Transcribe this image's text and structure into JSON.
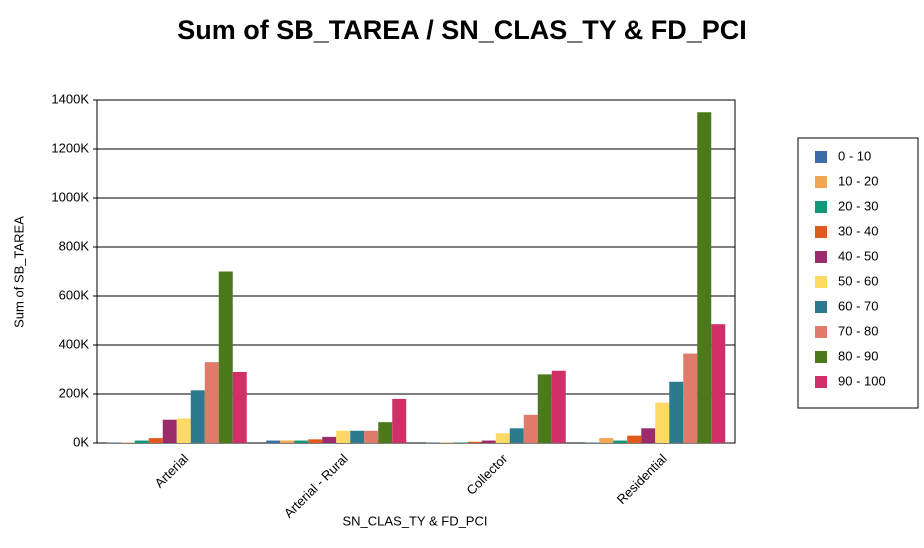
{
  "chart_data": {
    "type": "bar",
    "title": "Sum of SB_TAREA / SN_CLAS_TY & FD_PCI",
    "x_label": "SN_CLAS_TY & FD_PCI",
    "y_label": "Sum of SB_TAREA",
    "categories": [
      "Arterial",
      "Arterial - Rural",
      "Collector",
      "Residential"
    ],
    "series": [
      {
        "name": "0 - 10",
        "color": "#3b6ea8",
        "values": [
          2000,
          10000,
          2000,
          2000
        ]
      },
      {
        "name": "10 - 20",
        "color": "#f2a552",
        "values": [
          2000,
          10000,
          2000,
          20000
        ]
      },
      {
        "name": "20 - 30",
        "color": "#11997a",
        "values": [
          10000,
          10000,
          2000,
          10000
        ]
      },
      {
        "name": "30 - 40",
        "color": "#e05a1e",
        "values": [
          20000,
          15000,
          5000,
          30000
        ]
      },
      {
        "name": "40 - 50",
        "color": "#9b2b6b",
        "values": [
          95000,
          25000,
          10000,
          60000
        ]
      },
      {
        "name": "50 - 60",
        "color": "#ffd966",
        "values": [
          100000,
          50000,
          40000,
          165000
        ]
      },
      {
        "name": "60 - 70",
        "color": "#2b7a8e",
        "values": [
          215000,
          50000,
          60000,
          250000
        ]
      },
      {
        "name": "70 - 80",
        "color": "#e07a6a",
        "values": [
          330000,
          50000,
          115000,
          365000
        ]
      },
      {
        "name": "80 - 90",
        "color": "#4a7a1a",
        "values": [
          700000,
          85000,
          280000,
          1350000
        ]
      },
      {
        "name": "90 - 100",
        "color": "#d0306a",
        "values": [
          290000,
          180000,
          295000,
          485000
        ]
      }
    ],
    "ylim": [
      0,
      1400000
    ],
    "yticks": [
      {
        "value": 0,
        "label": "0K"
      },
      {
        "value": 200000,
        "label": "200K"
      },
      {
        "value": 400000,
        "label": "400K"
      },
      {
        "value": 600000,
        "label": "600K"
      },
      {
        "value": 800000,
        "label": "800K"
      },
      {
        "value": 1000000,
        "label": "1000K"
      },
      {
        "value": 1200000,
        "label": "1200K"
      },
      {
        "value": 1400000,
        "label": "1400K"
      }
    ],
    "grid": true,
    "legend": "right"
  }
}
